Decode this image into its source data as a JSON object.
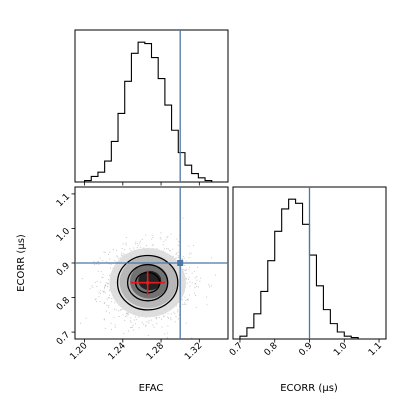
{
  "chart_data": {
    "type": "corner",
    "truth": {
      "EFAC": 1.3,
      "ECORR": 0.9
    },
    "truth_color": "#4c78a8",
    "hist_color": "#000000",
    "estimate": {
      "EFAC": 1.266,
      "ECORR": 0.843,
      "EFAC_err": 0.018,
      "ECORR_err": 0.035,
      "color": "#e41a1c"
    },
    "panels": [
      {
        "id": "hist_efac",
        "type": "histogram",
        "variable": "EFAC",
        "xlim": [
          1.19,
          1.35
        ],
        "bin_edges": [
          1.2,
          1.207,
          1.214,
          1.221,
          1.228,
          1.235,
          1.242,
          1.249,
          1.256,
          1.263,
          1.27,
          1.277,
          1.284,
          1.291,
          1.298,
          1.305,
          1.312,
          1.319,
          1.326,
          1.333,
          1.34
        ],
        "counts": [
          1,
          4,
          7,
          15,
          29,
          49,
          72,
          92,
          100,
          99,
          89,
          74,
          55,
          37,
          21,
          12,
          6,
          3,
          1,
          0
        ]
      },
      {
        "id": "hist_ecorr",
        "type": "histogram",
        "variable": "ECORR",
        "xlim": [
          0.68,
          1.12
        ],
        "xticks": [
          "0.7",
          "0.8",
          "0.9",
          "1.0",
          "1.1"
        ],
        "xticks_values": [
          0.7,
          0.8,
          0.9,
          1.0,
          1.1
        ],
        "xlabel": "ECORR (μs)",
        "bin_edges": [
          0.7,
          0.72,
          0.74,
          0.76,
          0.78,
          0.8,
          0.82,
          0.84,
          0.86,
          0.88,
          0.9,
          0.92,
          0.94,
          0.96,
          0.98,
          1.0,
          1.02,
          1.04,
          1.06
        ],
        "counts": [
          2,
          8,
          18,
          34,
          56,
          77,
          93,
          100,
          97,
          82,
          60,
          38,
          21,
          11,
          5,
          2,
          1,
          0
        ]
      },
      {
        "id": "joint",
        "type": "scatter-contour",
        "x_variable": "EFAC",
        "y_variable": "ECORR",
        "xlim": [
          1.19,
          1.35
        ],
        "ylim": [
          0.68,
          1.12
        ],
        "xticks": [
          "1.20",
          "1.24",
          "1.28",
          "1.32"
        ],
        "xticks_values": [
          1.2,
          1.24,
          1.28,
          1.32
        ],
        "yticks": [
          "0.7",
          "0.8",
          "0.9",
          "1.0",
          "1.1"
        ],
        "yticks_values": [
          0.7,
          0.8,
          0.9,
          1.0,
          1.1
        ],
        "xlabel": "EFAC",
        "ylabel": "ECORR (μs)",
        "center": [
          1.266,
          0.843
        ],
        "contours": [
          {
            "sx": 0.012,
            "sy": 0.028,
            "fill": "#1a1a1a",
            "stroke": "#000000"
          },
          {
            "sx": 0.02,
            "sy": 0.05,
            "fill": "#6a6a6a",
            "stroke": "#000000"
          },
          {
            "sx": 0.03,
            "sy": 0.075,
            "fill": "#b3b3b3",
            "stroke": "#000000"
          },
          {
            "sx": 0.04,
            "sy": 0.1,
            "fill": "#dcdcdc",
            "stroke": "#000000"
          }
        ]
      }
    ]
  }
}
